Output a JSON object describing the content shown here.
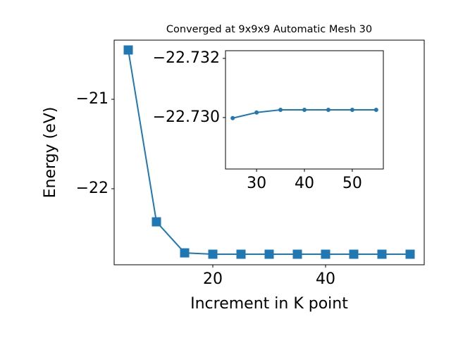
{
  "chart_data": [
    {
      "type": "line",
      "title": "Converged at 9x9x9 Automatic Mesh 30",
      "x_label": "Increment in K point",
      "y_label": "Energy (eV)",
      "x": [
        5,
        10,
        15,
        20,
        25,
        30,
        35,
        40,
        45,
        50,
        55
      ],
      "series": [
        {
          "color": "#1f77b4",
          "marker": "square",
          "values": [
            -20.449,
            -22.37,
            -22.717,
            -22.732,
            -22.732,
            -22.732,
            -22.732,
            -22.732,
            -22.732,
            -22.732,
            -22.732
          ]
        }
      ],
      "xlim": [
        2.5,
        57.5
      ],
      "ylim": [
        -22.85,
        -20.339
      ],
      "xticks": [
        20,
        40
      ],
      "yticks": [
        {
          "value": -22,
          "label": "−22"
        },
        {
          "value": -21,
          "label": "−21"
        }
      ]
    },
    {
      "type": "line",
      "x": [
        25,
        30,
        35,
        40,
        45,
        50,
        55
      ],
      "series": [
        {
          "color": "#1f77b4",
          "marker": "circle",
          "values": [
            -22.72998,
            -22.73017,
            -22.73026,
            -22.73026,
            -22.73026,
            -22.73026,
            -22.73026
          ]
        }
      ],
      "xlim": [
        23.5,
        56.5
      ],
      "ylim": [
        -22.72826,
        -22.73226
      ],
      "xticks": [
        30,
        40,
        50
      ],
      "yticks": [
        {
          "value": -22.732,
          "label": "−22.732"
        },
        {
          "value": -22.73,
          "label": "−22.730"
        }
      ]
    }
  ]
}
